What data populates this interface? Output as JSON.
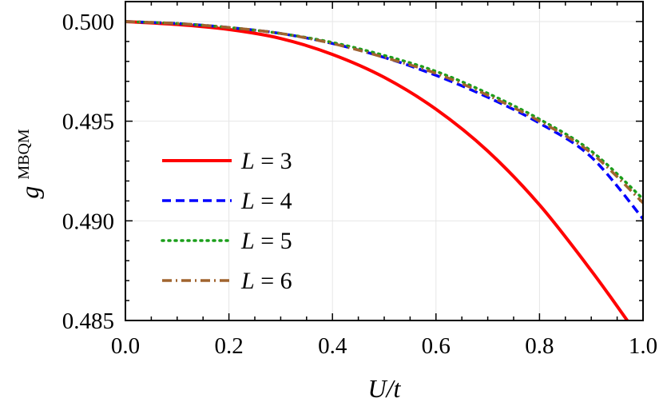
{
  "chart_data": {
    "type": "line",
    "xlabel": "U/t",
    "ylabel": "g",
    "ylabel_superscript": "MBQM",
    "xlim": [
      0.0,
      1.0
    ],
    "ylim": [
      0.485,
      0.501
    ],
    "xticks": [
      0.0,
      0.2,
      0.4,
      0.6,
      0.8,
      1.0
    ],
    "xtick_labels": [
      "0.0",
      "0.2",
      "0.4",
      "0.6",
      "0.8",
      "1.0"
    ],
    "yticks": [
      0.485,
      0.49,
      0.495,
      0.5
    ],
    "ytick_labels": [
      "0.485",
      "0.490",
      "0.495",
      "0.500"
    ],
    "grid": true,
    "legend_position": "center-left",
    "series": [
      {
        "name": "L = 3",
        "name_var": "L",
        "name_rel": "=",
        "name_num": "3",
        "color": "#ff0000",
        "style": "solid",
        "x": [
          0.0,
          0.1,
          0.2,
          0.3,
          0.4,
          0.5,
          0.6,
          0.7,
          0.8,
          0.9,
          0.975
        ],
        "y": [
          0.5,
          0.49985,
          0.4996,
          0.49915,
          0.49835,
          0.4972,
          0.4956,
          0.4935,
          0.4908,
          0.4875,
          0.4848
        ]
      },
      {
        "name": "L = 4",
        "name_var": "L",
        "name_rel": "=",
        "name_num": "4",
        "color": "#0000ff",
        "style": "dashed",
        "x": [
          0.0,
          0.1,
          0.2,
          0.3,
          0.4,
          0.5,
          0.6,
          0.7,
          0.8,
          0.9,
          1.0
        ],
        "y": [
          0.5,
          0.4999,
          0.4997,
          0.4994,
          0.4989,
          0.4982,
          0.4973,
          0.4962,
          0.4949,
          0.4932,
          0.4901
        ]
      },
      {
        "name": "L = 5",
        "name_var": "L",
        "name_rel": "=",
        "name_num": "5",
        "color": "#1a9e1a",
        "style": "dotted",
        "x": [
          0.0,
          0.1,
          0.2,
          0.3,
          0.4,
          0.5,
          0.6,
          0.7,
          0.8,
          0.9,
          1.0
        ],
        "y": [
          0.5,
          0.4999,
          0.4997,
          0.4994,
          0.49895,
          0.4983,
          0.4975,
          0.4964,
          0.4951,
          0.4935,
          0.4911
        ]
      },
      {
        "name": "L = 6",
        "name_var": "L",
        "name_rel": "=",
        "name_num": "6",
        "color": "#a0642e",
        "style": "dashdot",
        "x": [
          0.0,
          0.1,
          0.2,
          0.3,
          0.4,
          0.5,
          0.6,
          0.7,
          0.8,
          0.9,
          1.0
        ],
        "y": [
          0.5,
          0.4999,
          0.4997,
          0.4994,
          0.4989,
          0.4982,
          0.4974,
          0.4963,
          0.495,
          0.4934,
          0.4909
        ]
      }
    ]
  }
}
